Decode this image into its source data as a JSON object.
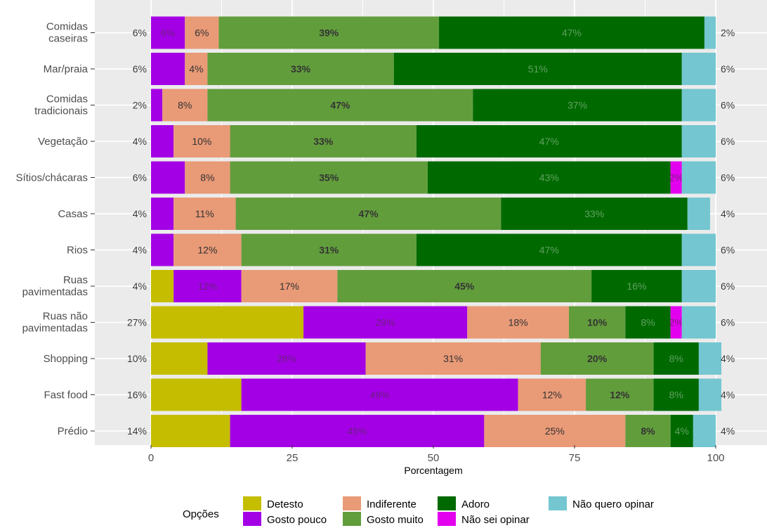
{
  "chart_data": {
    "type": "bar",
    "orientation": "horizontal",
    "stacked": true,
    "categories": [
      "Comidas caseiras",
      "Mar/praia",
      "Comidas tradicionais",
      "Vegetação",
      "Sítios/chácaras",
      "Casas",
      "Rios",
      "Ruas pavimentadas",
      "Ruas não pavimentadas",
      "Shopping",
      "Fast food",
      "Prédio"
    ],
    "category_lines": [
      [
        "Comidas",
        "caseiras"
      ],
      [
        "Mar/praia"
      ],
      [
        "Comidas",
        "tradicionais"
      ],
      [
        "Vegetação"
      ],
      [
        "Sítios/chácaras"
      ],
      [
        "Casas"
      ],
      [
        "Rios"
      ],
      [
        "Ruas",
        "pavimentadas"
      ],
      [
        "Ruas não",
        "pavimentadas"
      ],
      [
        "Shopping"
      ],
      [
        "Fast food"
      ],
      [
        "Prédio"
      ]
    ],
    "series": [
      {
        "name": "Detesto",
        "color": "#c5bd00",
        "values": [
          0,
          0,
          0,
          0,
          0,
          0,
          0,
          4,
          27,
          10,
          16,
          14
        ]
      },
      {
        "name": "Gosto pouco",
        "color": "#a400e6",
        "values": [
          6,
          6,
          2,
          4,
          6,
          4,
          4,
          12,
          29,
          28,
          49,
          45
        ]
      },
      {
        "name": "Indiferente",
        "color": "#e99a77",
        "values": [
          6,
          4,
          8,
          10,
          8,
          11,
          12,
          17,
          18,
          31,
          12,
          25
        ]
      },
      {
        "name": "Gosto muito",
        "color": "#629d3c",
        "values": [
          39,
          33,
          47,
          33,
          35,
          47,
          31,
          45,
          10,
          20,
          12,
          8
        ]
      },
      {
        "name": "Adoro",
        "color": "#006a00",
        "values": [
          47,
          51,
          37,
          47,
          43,
          33,
          47,
          16,
          8,
          8,
          8,
          4
        ]
      },
      {
        "name": "Não sei opinar",
        "color": "#e300ef",
        "values": [
          0,
          0,
          0,
          0,
          2,
          0,
          0,
          0,
          2,
          0,
          0,
          0
        ]
      },
      {
        "name": "Não quero opinar",
        "color": "#74c6d0",
        "values": [
          2,
          6,
          6,
          6,
          6,
          4,
          6,
          6,
          6,
          4,
          4,
          4
        ]
      }
    ],
    "segment_labels": [
      [
        "",
        "6%",
        "6%",
        "39%",
        "47%",
        "",
        ""
      ],
      [
        "",
        "",
        "4%",
        "33%",
        "51%",
        "",
        ""
      ],
      [
        "",
        "",
        "8%",
        "47%",
        "37%",
        "",
        ""
      ],
      [
        "",
        "",
        "10%",
        "33%",
        "47%",
        "",
        ""
      ],
      [
        "",
        "",
        "8%",
        "35%",
        "43%",
        "2%",
        ""
      ],
      [
        "",
        "",
        "11%",
        "47%",
        "33%",
        "",
        ""
      ],
      [
        "",
        "",
        "12%",
        "31%",
        "47%",
        "",
        ""
      ],
      [
        "",
        "12%",
        "17%",
        "45%",
        "16%",
        "",
        ""
      ],
      [
        "",
        "29%",
        "18%",
        "10%",
        "8%",
        "2%",
        ""
      ],
      [
        "",
        "28%",
        "31%",
        "20%",
        "8%",
        "",
        ""
      ],
      [
        "",
        "49%",
        "12%",
        "12%",
        "8%",
        "",
        ""
      ],
      [
        "",
        "45%",
        "25%",
        "8%",
        "4%",
        "",
        ""
      ]
    ],
    "left_labels": [
      "6%",
      "6%",
      "2%",
      "4%",
      "6%",
      "4%",
      "4%",
      "4%",
      "27%",
      "10%",
      "16%",
      "14%"
    ],
    "right_labels": [
      "2%",
      "6%",
      "6%",
      "6%",
      "6%",
      "4%",
      "6%",
      "6%",
      "6%",
      "4%",
      "4%",
      "4%"
    ],
    "xlabel": "Porcentagem",
    "ylabel": "",
    "xlim": [
      0,
      100
    ],
    "xticks": [
      0,
      25,
      50,
      75,
      100
    ],
    "grid": true,
    "panel_background": "#ebebeb",
    "legend_title": "Opções",
    "legend_position": "bottom"
  }
}
